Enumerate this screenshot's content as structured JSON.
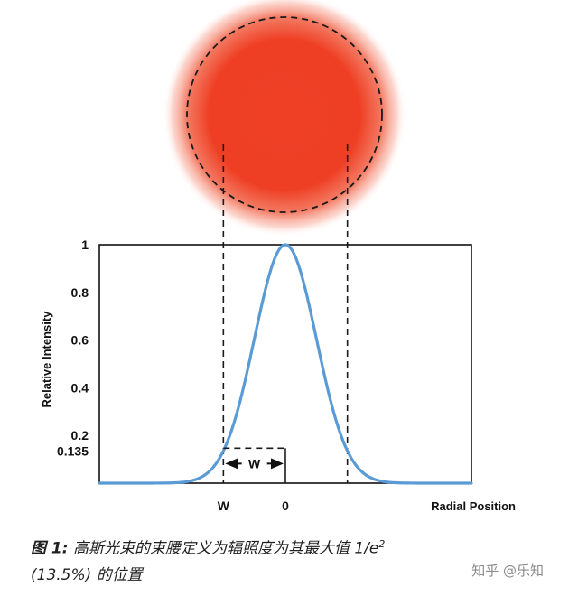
{
  "chart_data": {
    "type": "line",
    "ylabel": "Relative Intensity",
    "xlabel": "Radial Position",
    "ylim": [
      0,
      1
    ],
    "xlim": [
      -3,
      3
    ],
    "y_ticks": [
      {
        "value": 1,
        "label": "1"
      },
      {
        "value": 0.8,
        "label": "0.8"
      },
      {
        "value": 0.6,
        "label": "0.6"
      },
      {
        "value": 0.4,
        "label": "0.4"
      },
      {
        "value": 0.2,
        "label": "0.2"
      },
      {
        "value": 0.135,
        "label": "0.135"
      }
    ],
    "x_ticks": [
      {
        "value": -1,
        "label": "W"
      },
      {
        "value": 0,
        "label": "0"
      }
    ],
    "series": [
      {
        "curve": "gaussian",
        "peak": 1,
        "center": 0,
        "beam_radius_w": 1,
        "x": [
          -3,
          -2.5,
          -2,
          -1.75,
          -1.5,
          -1.25,
          -1,
          -0.75,
          -0.5,
          -0.25,
          0,
          0.25,
          0.5,
          0.75,
          1,
          1.25,
          1.5,
          1.75,
          2,
          2.5,
          3
        ],
        "y": [
          0.0,
          0.0,
          0.0003,
          0.0022,
          0.0111,
          0.0439,
          0.1353,
          0.3247,
          0.6065,
          0.8825,
          1.0,
          0.8825,
          0.6065,
          0.3247,
          0.1353,
          0.0439,
          0.0111,
          0.0022,
          0.0003,
          0.0,
          0.0
        ]
      }
    ],
    "annotations": [
      {
        "type": "arrow",
        "from": -1,
        "to": 0,
        "y": 0.135,
        "label": "W"
      },
      {
        "type": "guide",
        "x": -1
      },
      {
        "type": "guide",
        "x": 1
      }
    ],
    "beam_spot": {
      "color": "#ee3f24",
      "outline": "dashed"
    },
    "curve_color": "#5b9bd5",
    "grid": false
  },
  "caption": {
    "label": "图 1:",
    "text": " 高斯光束的束腰定义为辐照度为其最大值 1/e",
    "superscript": "2",
    "line2": "(13.5%) 的位置"
  },
  "watermark": "知乎 @乐知"
}
